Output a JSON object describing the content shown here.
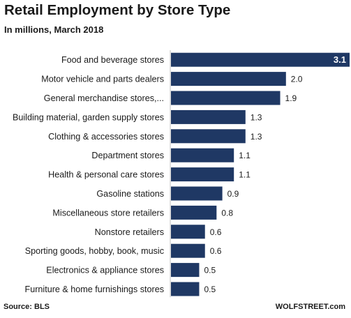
{
  "title": "Retail Employment by Store Type",
  "subtitle": "In millions, March 2018",
  "source": "Source: BLS",
  "brand": "WOLFSTREET.com",
  "colors": {
    "bar": "#1f3864",
    "label": "#1a1a1a",
    "inner_label": "#ffffff"
  },
  "chart_data": {
    "type": "bar",
    "orientation": "horizontal",
    "title": "Retail Employment by Store Type",
    "subtitle": "In millions, March 2018",
    "categories": [
      "Food and beverage stores",
      "Motor vehicle and parts dealers",
      "General merchandise stores,...",
      "Building material, garden supply stores",
      "Clothing & accessories stores",
      "Department stores",
      "Health & personal care stores",
      "Gasoline stations",
      "Miscellaneous store retailers",
      "Nonstore retailers",
      "Sporting goods, hobby, book, music",
      "Electronics & appliance stores",
      "Furniture & home furnishings stores"
    ],
    "values": [
      3.1,
      2.0,
      1.9,
      1.3,
      1.3,
      1.1,
      1.1,
      0.9,
      0.8,
      0.6,
      0.6,
      0.5,
      0.5
    ],
    "value_labels": [
      "3.1",
      "2.0",
      "1.9",
      "1.3",
      "1.3",
      "1.1",
      "1.1",
      "0.9",
      "0.8",
      "0.6",
      "0.6",
      "0.5",
      "0.5"
    ],
    "xlim": [
      0,
      3.1
    ],
    "grid": false,
    "legend": "none"
  }
}
